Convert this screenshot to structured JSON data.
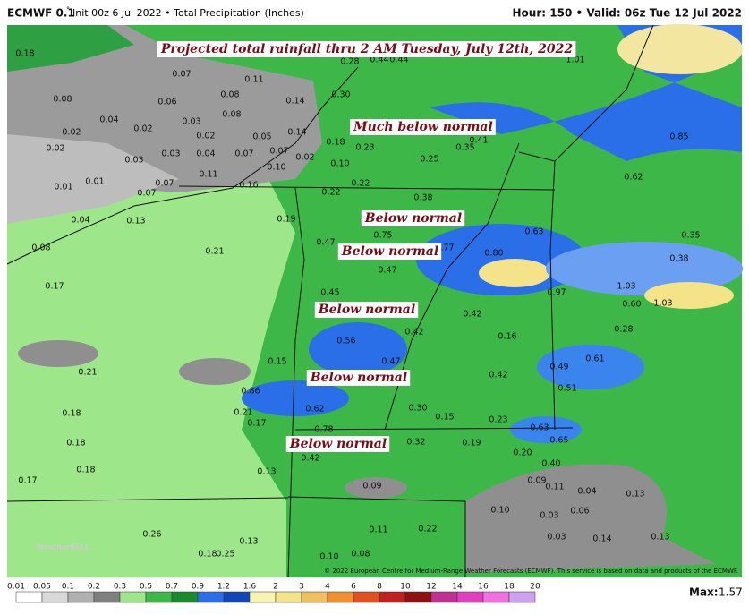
{
  "header": {
    "model": "ECMWF 0.1",
    "degree": "°",
    "info": "Init 00z 6 Jul 2022 • Total Precipitation (Inches)",
    "valid": "Hour: 150 • Valid: 06z Tue 12 Jul 2022"
  },
  "annotations": [
    "Projected total rainfall thru 2 AM Tuesday, July 12th, 2022",
    "Much below normal",
    "Below normal",
    "Below normal",
    "Below normal",
    "Below normal",
    "Below normal"
  ],
  "map_values": [
    "0.18",
    "0.07",
    "0.11",
    "0.08",
    "0.06",
    "0.08",
    "0.14",
    "0.30",
    "0.28",
    "0.44",
    "0.44",
    "0.04",
    "0.03",
    "0.08",
    "0.02",
    "0.02",
    "0.02",
    "0.05",
    "0.14",
    "0.18",
    "0.41",
    "0.02",
    "0.03",
    "0.03",
    "0.04",
    "0.07",
    "0.07",
    "0.02",
    "0.23",
    "0.35",
    "0.25",
    "0.10",
    "0.10",
    "0.11",
    "0.01",
    "0.01",
    "0.07",
    "0.07",
    "0.16",
    "0.22",
    "0.62",
    "0.85",
    "1.01",
    "0.22",
    "0.38",
    "0.04",
    "0.13",
    "0.19",
    "0.75",
    "0.77",
    "0.63",
    "0.35",
    "0.08",
    "0.21",
    "0.47",
    "0.80",
    "0.38",
    "0.17",
    "0.47",
    "0.97",
    "1.03",
    "1.03",
    "0.45",
    "0.42",
    "0.60",
    "0.28",
    "0.56",
    "0.42",
    "0.16",
    "0.47",
    "0.15",
    "0.61",
    "0.49",
    "0.21",
    "0.42",
    "0.86",
    "0.51",
    "0.62",
    "0.30",
    "0.21",
    "0.18",
    "0.17",
    "0.15",
    "0.23",
    "0.63",
    "0.78",
    "0.32",
    "0.65",
    "0.19",
    "0.18",
    "0.20",
    "0.42",
    "0.40",
    "0.18",
    "0.13",
    "0.17",
    "0.09",
    "0.09",
    "0.11",
    "0.04",
    "0.13",
    "0.10",
    "0.03",
    "0.06",
    "0.11",
    "0.22",
    "0.26",
    "0.03",
    "0.14",
    "0.13",
    "0.13",
    "0.18",
    "0.25",
    "0.10",
    "0.08"
  ],
  "colorbar": [
    "0.01",
    "0.05",
    "0.1",
    "0.2",
    "0.3",
    "0.5",
    "0.7",
    "0.9",
    "1.2",
    "1.6",
    "2",
    "3",
    "4",
    "6",
    "8",
    "10",
    "12",
    "14",
    "16",
    "18",
    "20"
  ],
  "footer": {
    "max_label": "Max:",
    "max_value": "1.57",
    "copyright": "© 2022 European Centre for Medium-Range Weather Forecasts (ECMWF). This service is based on data and products of the ECMWF.",
    "logo": "WeatherBELL"
  }
}
